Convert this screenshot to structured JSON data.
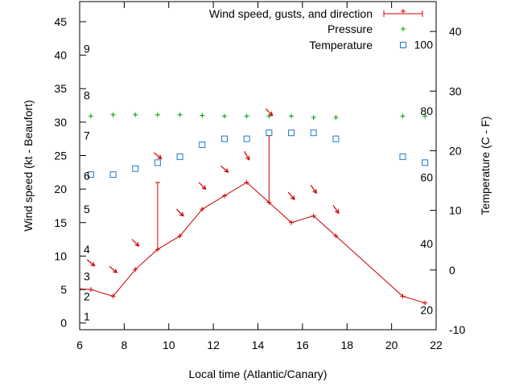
{
  "chart_data": {
    "type": "line",
    "xlabel": "Local time (Atlantic/Canary)",
    "ylabel_left": "Wind speed (kt - Beaufort)",
    "ylabel_right": "Temperature (C - F)",
    "xlim": [
      6,
      22
    ],
    "ylim_left": [
      -1,
      48
    ],
    "ylim_right": [
      -10,
      45
    ],
    "x_ticks": [
      6,
      8,
      10,
      12,
      14,
      16,
      18,
      20,
      22
    ],
    "y_ticks_left": [
      0,
      5,
      10,
      15,
      20,
      25,
      30,
      35,
      40,
      45
    ],
    "y_ticks_right": [
      -10,
      0,
      10,
      20,
      30,
      40
    ],
    "beaufort_labels": [
      {
        "label": "1",
        "kt": 1
      },
      {
        "label": "2",
        "kt": 4
      },
      {
        "label": "3",
        "kt": 7
      },
      {
        "label": "4",
        "kt": 11
      },
      {
        "label": "5",
        "kt": 17
      },
      {
        "label": "6",
        "kt": 22
      },
      {
        "label": "7",
        "kt": 28
      },
      {
        "label": "8",
        "kt": 34
      },
      {
        "label": "9",
        "kt": 41
      }
    ],
    "fahrenheit_labels": [
      {
        "label": "20",
        "f": 20
      },
      {
        "label": "40",
        "f": 40
      },
      {
        "label": "60",
        "f": 60
      },
      {
        "label": "80",
        "f": 80
      },
      {
        "label": "100",
        "f": 100
      }
    ],
    "legend_position": "top-right",
    "grid": false,
    "series": [
      {
        "name": "Wind speed, gusts, and direction",
        "color": "#cc0000",
        "x": [
          5.2,
          6.5,
          7.5,
          8.5,
          9.5,
          10.5,
          11.5,
          12.5,
          13.5,
          14.5,
          15.5,
          16.5,
          17.5,
          20.5,
          21.5
        ],
        "y": [
          5.3,
          5,
          4,
          8,
          11,
          13,
          17,
          19,
          21,
          18,
          15,
          16,
          13,
          4,
          3
        ],
        "gusts": [
          null,
          null,
          null,
          null,
          21,
          null,
          null,
          null,
          null,
          28,
          null,
          null,
          null,
          null,
          null
        ],
        "arrows": [
          {
            "x": 6.5,
            "y": 9,
            "angle": 40
          },
          {
            "x": 7.5,
            "y": 8,
            "angle": 40
          },
          {
            "x": 8.5,
            "y": 12,
            "angle": 45
          },
          {
            "x": 9.5,
            "y": 25,
            "angle": 40
          },
          {
            "x": 10.5,
            "y": 16.5,
            "angle": 45
          },
          {
            "x": 11.5,
            "y": 20.5,
            "angle": 45
          },
          {
            "x": 12.5,
            "y": 23,
            "angle": 40
          },
          {
            "x": 13.5,
            "y": 25,
            "angle": 60
          },
          {
            "x": 14.5,
            "y": 31.5,
            "angle": 45
          },
          {
            "x": 15.5,
            "y": 19,
            "angle": 50
          },
          {
            "x": 16.5,
            "y": 20,
            "angle": 55
          },
          {
            "x": 17.5,
            "y": 17,
            "angle": 55
          }
        ]
      },
      {
        "name": "Pressure",
        "color": "#00a000",
        "axis": "left",
        "x": [
          6.5,
          7.5,
          8.5,
          9.5,
          10.5,
          11.5,
          12.5,
          13.5,
          14.5,
          15.5,
          16.5,
          17.5,
          20.5,
          21.5
        ],
        "y": [
          30.9,
          31.1,
          31.1,
          31.1,
          31.1,
          31.0,
          30.9,
          30.9,
          30.9,
          30.9,
          30.7,
          30.7,
          30.9,
          30.9
        ]
      },
      {
        "name": "Temperature",
        "color": "#1e78c8",
        "axis": "right",
        "x": [
          6.5,
          7.5,
          8.5,
          9.5,
          10.5,
          11.5,
          12.5,
          13.5,
          14.5,
          15.5,
          16.5,
          17.5,
          20.5,
          21.5
        ],
        "y": [
          16,
          16,
          17,
          18,
          19,
          21,
          22,
          22,
          23,
          23,
          23,
          22,
          19,
          18
        ]
      }
    ]
  }
}
